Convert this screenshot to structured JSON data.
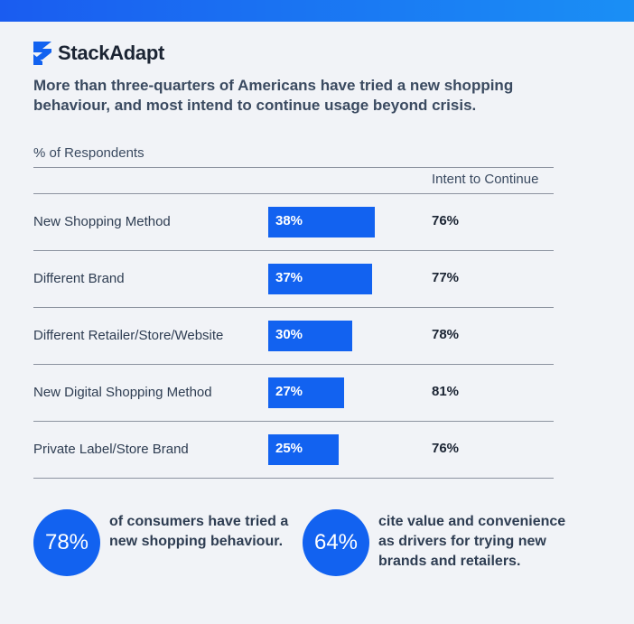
{
  "brand": "StackAdapt",
  "chart_data": {
    "type": "bar",
    "title": "More than three-quarters of Americans have tried a new shopping behaviour, and most intend to continue usage beyond crisis.",
    "axis_label": "% of Respondents",
    "categories": [
      "New Shopping Method",
      "Different Brand",
      "Different Retailer/Store/Website",
      "New Digital Shopping Method",
      "Private Label/Store Brand"
    ],
    "values": [
      38,
      37,
      30,
      27,
      25
    ],
    "value_labels": [
      "38%",
      "37%",
      "30%",
      "27%",
      "25%"
    ],
    "color": "#1262f0",
    "intent": {
      "name": "Intent to Continue",
      "values": [
        "76%",
        "77%",
        "78%",
        "81%",
        "76%"
      ]
    }
  },
  "stats": [
    {
      "value": "78%",
      "text": "of consumers have tried a new shopping behaviour."
    },
    {
      "value": "64%",
      "text": "cite value and convenience as drivers for trying new brands and retailers."
    }
  ]
}
